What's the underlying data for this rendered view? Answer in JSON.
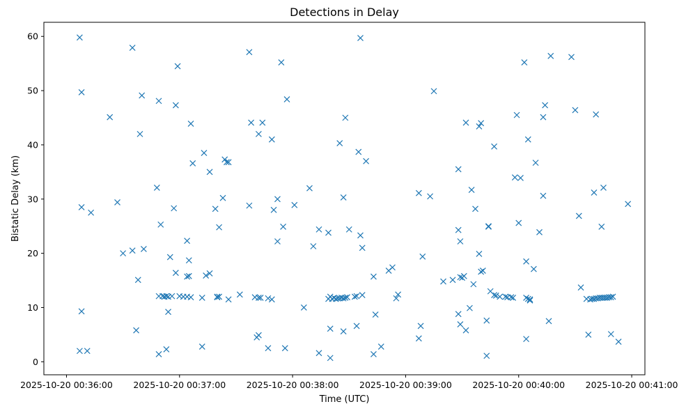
{
  "chart_data": {
    "type": "scatter",
    "title": "Detections in Delay",
    "xlabel": "Time (UTC)",
    "ylabel": "Bistatic Delay (km)",
    "marker": "x",
    "color": "#1f77b4",
    "grid": false,
    "legend": "none",
    "xlim": [
      "2025-10-20 00:35:48",
      "2025-10-20 00:41:07"
    ],
    "ylim": [
      -2.4,
      62.6
    ],
    "x_ticks": [
      "2025-10-20 00:36:00",
      "2025-10-20 00:37:00",
      "2025-10-20 00:38:00",
      "2025-10-20 00:39:00",
      "2025-10-20 00:40:00",
      "2025-10-20 00:41:00"
    ],
    "y_ticks": [
      0,
      10,
      20,
      30,
      40,
      50,
      60
    ],
    "points": [
      [
        "2025-10-20 00:36:07",
        59.8
      ],
      [
        "2025-10-20 00:36:08",
        49.7
      ],
      [
        "2025-10-20 00:36:08",
        28.5
      ],
      [
        "2025-10-20 00:36:08",
        9.3
      ],
      [
        "2025-10-20 00:36:07",
        2.0
      ],
      [
        "2025-10-20 00:36:11",
        2.0
      ],
      [
        "2025-10-20 00:36:13",
        27.5
      ],
      [
        "2025-10-20 00:36:23",
        45.1
      ],
      [
        "2025-10-20 00:36:27",
        29.4
      ],
      [
        "2025-10-20 00:36:30",
        20.0
      ],
      [
        "2025-10-20 00:36:35",
        57.9
      ],
      [
        "2025-10-20 00:36:35",
        20.5
      ],
      [
        "2025-10-20 00:36:37",
        5.8
      ],
      [
        "2025-10-20 00:36:38",
        15.1
      ],
      [
        "2025-10-20 00:36:39",
        42.0
      ],
      [
        "2025-10-20 00:36:40",
        49.1
      ],
      [
        "2025-10-20 00:36:41",
        20.8
      ],
      [
        "2025-10-20 00:36:48",
        32.1
      ],
      [
        "2025-10-20 00:36:49",
        48.1
      ],
      [
        "2025-10-20 00:36:49",
        12.1
      ],
      [
        "2025-10-20 00:36:49",
        1.4
      ],
      [
        "2025-10-20 00:36:50",
        25.3
      ],
      [
        "2025-10-20 00:36:51",
        12.1
      ],
      [
        "2025-10-20 00:36:52",
        12.0
      ],
      [
        "2025-10-20 00:36:53",
        12.1
      ],
      [
        "2025-10-20 00:36:53",
        2.3
      ],
      [
        "2025-10-20 00:36:54",
        12.0
      ],
      [
        "2025-10-20 00:36:54",
        9.2
      ],
      [
        "2025-10-20 00:36:55",
        19.3
      ],
      [
        "2025-10-20 00:36:56",
        12.1
      ],
      [
        "2025-10-20 00:36:57",
        28.3
      ],
      [
        "2025-10-20 00:36:58",
        47.3
      ],
      [
        "2025-10-20 00:36:58",
        16.4
      ],
      [
        "2025-10-20 00:36:59",
        54.5
      ],
      [
        "2025-10-20 00:37:00",
        12.1
      ],
      [
        "2025-10-20 00:37:02",
        12.0
      ],
      [
        "2025-10-20 00:37:04",
        22.3
      ],
      [
        "2025-10-20 00:37:04",
        15.7
      ],
      [
        "2025-10-20 00:37:04",
        12.0
      ],
      [
        "2025-10-20 00:37:05",
        18.7
      ],
      [
        "2025-10-20 00:37:05",
        15.8
      ],
      [
        "2025-10-20 00:37:06",
        11.9
      ],
      [
        "2025-10-20 00:37:06",
        43.9
      ],
      [
        "2025-10-20 00:37:07",
        36.6
      ],
      [
        "2025-10-20 00:37:12",
        2.8
      ],
      [
        "2025-10-20 00:37:12",
        11.8
      ],
      [
        "2025-10-20 00:37:13",
        38.5
      ],
      [
        "2025-10-20 00:37:14",
        15.9
      ],
      [
        "2025-10-20 00:37:16",
        35.0
      ],
      [
        "2025-10-20 00:37:16",
        16.3
      ],
      [
        "2025-10-20 00:37:19",
        28.2
      ],
      [
        "2025-10-20 00:37:20",
        12.0
      ],
      [
        "2025-10-20 00:37:20",
        11.9
      ],
      [
        "2025-10-20 00:37:21",
        24.8
      ],
      [
        "2025-10-20 00:37:21",
        12.0
      ],
      [
        "2025-10-20 00:37:23",
        30.2
      ],
      [
        "2025-10-20 00:37:24",
        37.3
      ],
      [
        "2025-10-20 00:37:25",
        36.8
      ],
      [
        "2025-10-20 00:37:26",
        36.8
      ],
      [
        "2025-10-20 00:37:26",
        11.5
      ],
      [
        "2025-10-20 00:37:32",
        12.4
      ],
      [
        "2025-10-20 00:37:37",
        57.1
      ],
      [
        "2025-10-20 00:37:37",
        28.8
      ],
      [
        "2025-10-20 00:37:38",
        44.1
      ],
      [
        "2025-10-20 00:37:40",
        11.9
      ],
      [
        "2025-10-20 00:37:41",
        4.5
      ],
      [
        "2025-10-20 00:37:42",
        42.0
      ],
      [
        "2025-10-20 00:37:42",
        11.8
      ],
      [
        "2025-10-20 00:37:42",
        4.9
      ],
      [
        "2025-10-20 00:37:43",
        11.8
      ],
      [
        "2025-10-20 00:37:44",
        44.1
      ],
      [
        "2025-10-20 00:37:47",
        2.5
      ],
      [
        "2025-10-20 00:37:47",
        11.7
      ],
      [
        "2025-10-20 00:37:49",
        41.0
      ],
      [
        "2025-10-20 00:37:49",
        11.5
      ],
      [
        "2025-10-20 00:37:50",
        28.0
      ],
      [
        "2025-10-20 00:37:52",
        30.0
      ],
      [
        "2025-10-20 00:37:52",
        22.2
      ],
      [
        "2025-10-20 00:37:54",
        55.2
      ],
      [
        "2025-10-20 00:37:55",
        24.9
      ],
      [
        "2025-10-20 00:37:56",
        2.5
      ],
      [
        "2025-10-20 00:37:57",
        48.4
      ],
      [
        "2025-10-20 00:38:01",
        28.9
      ],
      [
        "2025-10-20 00:38:06",
        10.0
      ],
      [
        "2025-10-20 00:38:09",
        32.0
      ],
      [
        "2025-10-20 00:38:11",
        21.3
      ],
      [
        "2025-10-20 00:38:14",
        24.4
      ],
      [
        "2025-10-20 00:38:14",
        1.6
      ],
      [
        "2025-10-20 00:38:19",
        23.8
      ],
      [
        "2025-10-20 00:38:19",
        11.6
      ],
      [
        "2025-10-20 00:38:20",
        12.0
      ],
      [
        "2025-10-20 00:38:20",
        6.1
      ],
      [
        "2025-10-20 00:38:20",
        0.7
      ],
      [
        "2025-10-20 00:38:21",
        11.6
      ],
      [
        "2025-10-20 00:38:22",
        11.8
      ],
      [
        "2025-10-20 00:38:23",
        11.6
      ],
      [
        "2025-10-20 00:38:24",
        11.7
      ],
      [
        "2025-10-20 00:38:25",
        11.7
      ],
      [
        "2025-10-20 00:38:25",
        40.3
      ],
      [
        "2025-10-20 00:38:26",
        11.8
      ],
      [
        "2025-10-20 00:38:27",
        30.3
      ],
      [
        "2025-10-20 00:38:27",
        11.7
      ],
      [
        "2025-10-20 00:38:27",
        5.6
      ],
      [
        "2025-10-20 00:38:28",
        45.0
      ],
      [
        "2025-10-20 00:38:28",
        11.8
      ],
      [
        "2025-10-20 00:38:29",
        11.9
      ],
      [
        "2025-10-20 00:38:30",
        24.4
      ],
      [
        "2025-10-20 00:38:33",
        12.0
      ],
      [
        "2025-10-20 00:38:34",
        12.1
      ],
      [
        "2025-10-20 00:38:34",
        6.6
      ],
      [
        "2025-10-20 00:38:35",
        38.7
      ],
      [
        "2025-10-20 00:38:36",
        23.3
      ],
      [
        "2025-10-20 00:38:36",
        59.7
      ],
      [
        "2025-10-20 00:38:37",
        12.3
      ],
      [
        "2025-10-20 00:38:37",
        21.0
      ],
      [
        "2025-10-20 00:38:39",
        37.0
      ],
      [
        "2025-10-20 00:38:43",
        15.7
      ],
      [
        "2025-10-20 00:38:43",
        1.4
      ],
      [
        "2025-10-20 00:38:44",
        8.7
      ],
      [
        "2025-10-20 00:38:47",
        2.8
      ],
      [
        "2025-10-20 00:38:51",
        16.8
      ],
      [
        "2025-10-20 00:38:53",
        17.4
      ],
      [
        "2025-10-20 00:38:55",
        11.7
      ],
      [
        "2025-10-20 00:38:56",
        12.4
      ],
      [
        "2025-10-20 00:39:07",
        31.1
      ],
      [
        "2025-10-20 00:39:07",
        4.3
      ],
      [
        "2025-10-20 00:39:08",
        6.6
      ],
      [
        "2025-10-20 00:39:09",
        19.4
      ],
      [
        "2025-10-20 00:39:13",
        30.5
      ],
      [
        "2025-10-20 00:39:15",
        49.9
      ],
      [
        "2025-10-20 00:39:20",
        14.8
      ],
      [
        "2025-10-20 00:39:25",
        15.1
      ],
      [
        "2025-10-20 00:39:28",
        35.5
      ],
      [
        "2025-10-20 00:39:28",
        24.3
      ],
      [
        "2025-10-20 00:39:28",
        8.8
      ],
      [
        "2025-10-20 00:39:29",
        6.9
      ],
      [
        "2025-10-20 00:39:29",
        22.2
      ],
      [
        "2025-10-20 00:39:29",
        15.6
      ],
      [
        "2025-10-20 00:39:30",
        15.5
      ],
      [
        "2025-10-20 00:39:31",
        15.8
      ],
      [
        "2025-10-20 00:39:32",
        44.1
      ],
      [
        "2025-10-20 00:39:32",
        5.8
      ],
      [
        "2025-10-20 00:39:34",
        9.9
      ],
      [
        "2025-10-20 00:39:35",
        31.7
      ],
      [
        "2025-10-20 00:39:36",
        14.3
      ],
      [
        "2025-10-20 00:39:37",
        28.2
      ],
      [
        "2025-10-20 00:39:39",
        43.4
      ],
      [
        "2025-10-20 00:39:39",
        19.9
      ],
      [
        "2025-10-20 00:39:40",
        44.0
      ],
      [
        "2025-10-20 00:39:40",
        16.6
      ],
      [
        "2025-10-20 00:39:41",
        16.8
      ],
      [
        "2025-10-20 00:39:43",
        7.6
      ],
      [
        "2025-10-20 00:39:43",
        1.1
      ],
      [
        "2025-10-20 00:39:44",
        25.0
      ],
      [
        "2025-10-20 00:39:44",
        24.9
      ],
      [
        "2025-10-20 00:39:45",
        13.0
      ],
      [
        "2025-10-20 00:39:47",
        39.7
      ],
      [
        "2025-10-20 00:39:47",
        12.3
      ],
      [
        "2025-10-20 00:39:48",
        12.2
      ],
      [
        "2025-10-20 00:39:50",
        12.0
      ],
      [
        "2025-10-20 00:39:53",
        12.0
      ],
      [
        "2025-10-20 00:39:54",
        11.9
      ],
      [
        "2025-10-20 00:39:56",
        11.9
      ],
      [
        "2025-10-20 00:39:57",
        11.8
      ],
      [
        "2025-10-20 00:39:58",
        34.0
      ],
      [
        "2025-10-20 00:39:59",
        45.5
      ],
      [
        "2025-10-20 00:40:00",
        25.6
      ],
      [
        "2025-10-20 00:40:01",
        33.9
      ],
      [
        "2025-10-20 00:40:03",
        55.2
      ],
      [
        "2025-10-20 00:40:04",
        18.5
      ],
      [
        "2025-10-20 00:40:04",
        11.8
      ],
      [
        "2025-10-20 00:40:04",
        4.2
      ],
      [
        "2025-10-20 00:40:05",
        41.0
      ],
      [
        "2025-10-20 00:40:05",
        11.6
      ],
      [
        "2025-10-20 00:40:06",
        11.3
      ],
      [
        "2025-10-20 00:40:06",
        11.5
      ],
      [
        "2025-10-20 00:40:08",
        17.1
      ],
      [
        "2025-10-20 00:40:09",
        36.7
      ],
      [
        "2025-10-20 00:40:11",
        23.9
      ],
      [
        "2025-10-20 00:40:13",
        30.6
      ],
      [
        "2025-10-20 00:40:13",
        45.1
      ],
      [
        "2025-10-20 00:40:14",
        47.3
      ],
      [
        "2025-10-20 00:40:16",
        7.5
      ],
      [
        "2025-10-20 00:40:17",
        56.4
      ],
      [
        "2025-10-20 00:40:28",
        56.2
      ],
      [
        "2025-10-20 00:40:30",
        46.4
      ],
      [
        "2025-10-20 00:40:32",
        26.9
      ],
      [
        "2025-10-20 00:40:33",
        13.7
      ],
      [
        "2025-10-20 00:40:36",
        11.6
      ],
      [
        "2025-10-20 00:40:37",
        5.0
      ],
      [
        "2025-10-20 00:40:38",
        11.5
      ],
      [
        "2025-10-20 00:40:39",
        11.6
      ],
      [
        "2025-10-20 00:40:40",
        31.2
      ],
      [
        "2025-10-20 00:40:40",
        11.6
      ],
      [
        "2025-10-20 00:40:41",
        45.6
      ],
      [
        "2025-10-20 00:40:41",
        11.7
      ],
      [
        "2025-10-20 00:40:42",
        11.7
      ],
      [
        "2025-10-20 00:40:43",
        11.8
      ],
      [
        "2025-10-20 00:40:44",
        11.8
      ],
      [
        "2025-10-20 00:40:44",
        24.9
      ],
      [
        "2025-10-20 00:40:45",
        32.1
      ],
      [
        "2025-10-20 00:40:45",
        11.8
      ],
      [
        "2025-10-20 00:40:46",
        11.8
      ],
      [
        "2025-10-20 00:40:47",
        11.8
      ],
      [
        "2025-10-20 00:40:48",
        11.9
      ],
      [
        "2025-10-20 00:40:49",
        11.9
      ],
      [
        "2025-10-20 00:40:50",
        12.0
      ],
      [
        "2025-10-20 00:40:49",
        5.1
      ],
      [
        "2025-10-20 00:40:53",
        3.7
      ],
      [
        "2025-10-20 00:40:58",
        29.1
      ]
    ]
  }
}
